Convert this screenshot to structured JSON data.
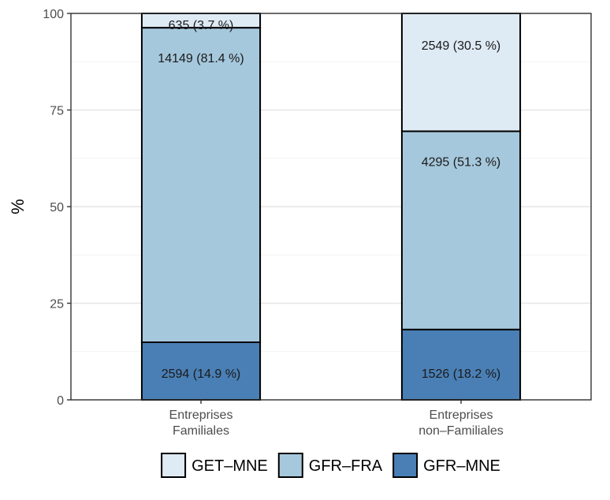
{
  "chart_data": {
    "type": "bar",
    "stacked": true,
    "ylabel": "%",
    "ylim": [
      0,
      100
    ],
    "yticks": [
      0,
      25,
      50,
      75,
      100
    ],
    "grid": true,
    "legend_position": "bottom",
    "categories": [
      [
        "Entreprises",
        "Familiales"
      ],
      [
        "Entreprises",
        "non–Familiales"
      ]
    ],
    "series": [
      {
        "name": "GFR–MNE",
        "color": "#4a7fb5",
        "values": [
          14.9,
          18.2
        ],
        "labels": [
          "2594 (14.9 %)",
          "1526 (18.2 %)"
        ]
      },
      {
        "name": "GFR–FRA",
        "color": "#a6c8dc",
        "values": [
          81.4,
          51.3
        ],
        "labels": [
          "14149 (81.4 %)",
          "4295 (51.3 %)"
        ]
      },
      {
        "name": "GET–MNE",
        "color": "#deeaf4",
        "values": [
          3.7,
          30.5
        ],
        "labels": [
          "635 (3.7 %)",
          "2549 (30.5 %)"
        ]
      }
    ],
    "legend_order": [
      "GET–MNE",
      "GFR–FRA",
      "GFR–MNE"
    ]
  }
}
